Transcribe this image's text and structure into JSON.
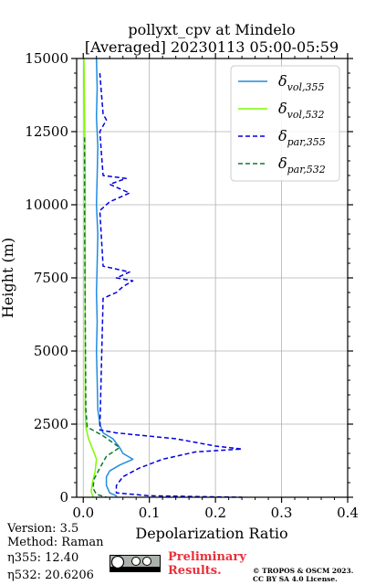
{
  "chart_data": {
    "type": "line",
    "title_line1": "pollyxt_cpv at Mindelo",
    "title_line2": "[Averaged] 20230113 05:00-05:59",
    "xlabel": "Depolarization Ratio",
    "ylabel": "Height (m)",
    "xlim": [
      -0.01,
      0.4
    ],
    "ylim": [
      0,
      15000
    ],
    "x_ticks": [
      "0.0",
      "0.1",
      "0.2",
      "0.3",
      "0.4"
    ],
    "x_tick_values": [
      0,
      0.1,
      0.2,
      0.3,
      0.4
    ],
    "y_ticks": [
      "0",
      "2500",
      "5000",
      "7500",
      "10000",
      "12500",
      "15000"
    ],
    "y_tick_values": [
      0,
      2500,
      5000,
      7500,
      10000,
      12500,
      15000
    ],
    "grid": true,
    "legend_position": "top-right",
    "series": [
      {
        "name_base": "δ",
        "name_sub": "vol,355",
        "color": "#1f8ce0",
        "dash": "solid",
        "points": [
          [
            0.02,
            15000
          ],
          [
            0.021,
            14000
          ],
          [
            0.02,
            13000
          ],
          [
            0.022,
            12000
          ],
          [
            0.021,
            11000
          ],
          [
            0.02,
            10000
          ],
          [
            0.022,
            9000
          ],
          [
            0.021,
            8000
          ],
          [
            0.02,
            7000
          ],
          [
            0.021,
            6000
          ],
          [
            0.02,
            5000
          ],
          [
            0.021,
            4000
          ],
          [
            0.022,
            3000
          ],
          [
            0.025,
            2500
          ],
          [
            0.03,
            2200
          ],
          [
            0.045,
            2000
          ],
          [
            0.055,
            1700
          ],
          [
            0.06,
            1500
          ],
          [
            0.075,
            1300
          ],
          [
            0.055,
            1100
          ],
          [
            0.04,
            900
          ],
          [
            0.035,
            700
          ],
          [
            0.035,
            400
          ],
          [
            0.04,
            150
          ],
          [
            0.05,
            50
          ],
          [
            0.05,
            0
          ]
        ]
      },
      {
        "name_base": "δ",
        "name_sub": "vol,532",
        "color": "#7cfc00",
        "dash": "solid",
        "points": [
          [
            0.001,
            15000
          ],
          [
            0.002,
            13000
          ],
          [
            0.003,
            11000
          ],
          [
            0.003,
            9000
          ],
          [
            0.003,
            7000
          ],
          [
            0.003,
            5000
          ],
          [
            0.003,
            3000
          ],
          [
            0.004,
            2400
          ],
          [
            0.008,
            2000
          ],
          [
            0.015,
            1600
          ],
          [
            0.02,
            1300
          ],
          [
            0.018,
            900
          ],
          [
            0.014,
            500
          ],
          [
            0.012,
            200
          ],
          [
            0.015,
            0
          ]
        ]
      },
      {
        "name_base": "δ",
        "name_sub": "par,355",
        "color": "#0000e0",
        "dash": "dashed",
        "points": [
          [
            0.025,
            14500
          ],
          [
            0.03,
            13100
          ],
          [
            0.035,
            12900
          ],
          [
            0.025,
            12500
          ],
          [
            0.03,
            11000
          ],
          [
            0.065,
            10900
          ],
          [
            0.04,
            10700
          ],
          [
            0.07,
            10400
          ],
          [
            0.04,
            10100
          ],
          [
            0.025,
            9800
          ],
          [
            0.03,
            7900
          ],
          [
            0.07,
            7700
          ],
          [
            0.05,
            7500
          ],
          [
            0.075,
            7400
          ],
          [
            0.06,
            7200
          ],
          [
            0.05,
            7000
          ],
          [
            0.03,
            6800
          ],
          [
            0.025,
            2300
          ],
          [
            0.05,
            2200
          ],
          [
            0.14,
            2000
          ],
          [
            0.2,
            1750
          ],
          [
            0.24,
            1650
          ],
          [
            0.17,
            1550
          ],
          [
            0.12,
            1300
          ],
          [
            0.085,
            1000
          ],
          [
            0.06,
            700
          ],
          [
            0.05,
            400
          ],
          [
            0.05,
            150
          ],
          [
            0.1,
            50
          ],
          [
            0.24,
            0
          ]
        ]
      },
      {
        "name_base": "δ",
        "name_sub": "par,532",
        "color": "#0b7a2e",
        "dash": "dashed",
        "points": [
          [
            0.002,
            12300
          ],
          [
            0.002,
            12000
          ],
          [
            0.002,
            9500
          ],
          [
            0.003,
            6000
          ],
          [
            0.004,
            3000
          ],
          [
            0.006,
            2400
          ],
          [
            0.03,
            2100
          ],
          [
            0.055,
            1700
          ],
          [
            0.035,
            1400
          ],
          [
            0.025,
            1000
          ],
          [
            0.016,
            600
          ],
          [
            0.015,
            300
          ],
          [
            0.02,
            100
          ],
          [
            0.035,
            0
          ]
        ]
      }
    ]
  },
  "footer": {
    "version": "Version: 3.5",
    "method": "Method: Raman",
    "eta355_label": "η355:  12.40",
    "eta532_label": "η532: 20.6206",
    "preliminary_line1": "Preliminary",
    "preliminary_line2": "Results.",
    "copyright_line1": "© TROPOS & OSCM 2023.",
    "copyright_line2": "CC BY SA 4.0 License."
  },
  "colors": {
    "grid": "#b0b0b0",
    "preliminary": "#e8303a"
  }
}
